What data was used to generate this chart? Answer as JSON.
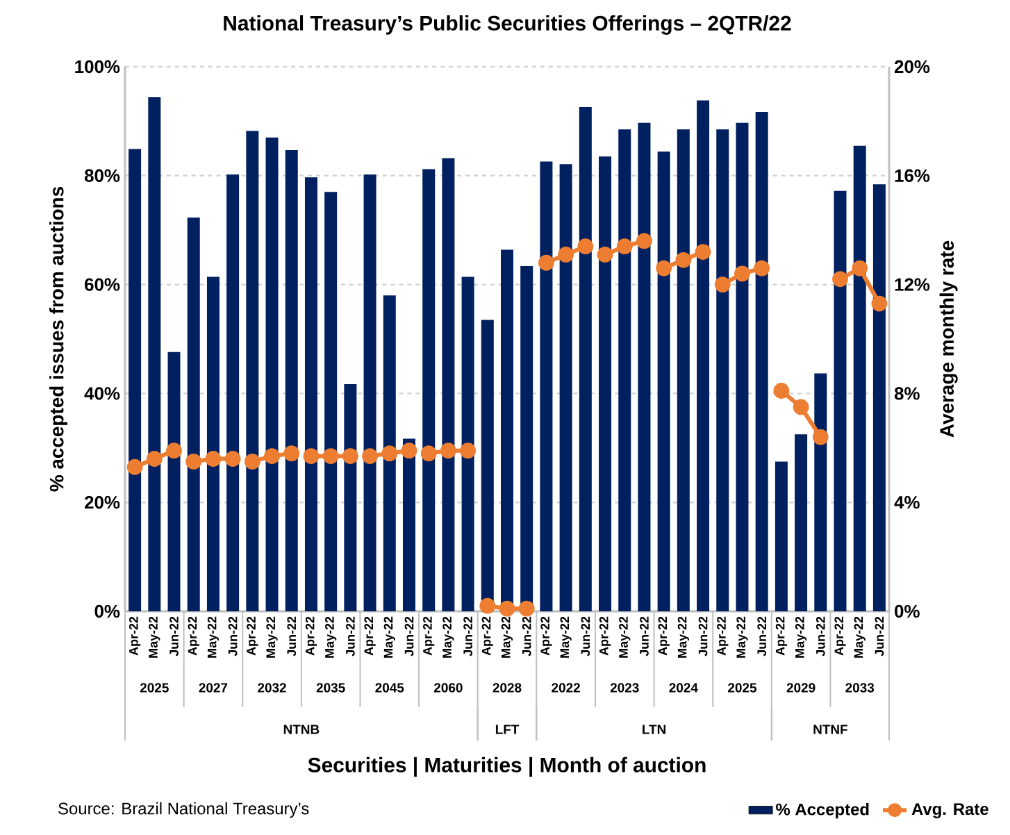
{
  "chart_data": {
    "type": "bar",
    "title": "National Treasury’s Public Securities Offerings – 2QTR/22",
    "xlabel": "Securities | Maturities | Month of auction",
    "ylabel": "% accepted issues from auctions",
    "y2label": "Average monthly rate",
    "categories": [
      "Apr-22",
      "May-22",
      "Jun-22",
      "Apr-22",
      "May-22",
      "Jun-22",
      "Apr-22",
      "May-22",
      "Jun-22",
      "Apr-22",
      "May-22",
      "Jun-22",
      "Apr-22",
      "May-22",
      "Jun-22",
      "Apr-22",
      "May-22",
      "Jun-22",
      "Apr-22",
      "May-22",
      "Jun-22",
      "Apr-22",
      "May-22",
      "Jun-22",
      "Apr-22",
      "May-22",
      "Jun-22",
      "Apr-22",
      "May-22",
      "Jun-22",
      "Apr-22",
      "May-22",
      "Jun-22",
      "Apr-22",
      "May-22",
      "Jun-22",
      "Apr-22",
      "May-22",
      "Jun-22"
    ],
    "series": [
      {
        "name": "% Accepted",
        "color": "#002060",
        "values": [
          84.9,
          94.4,
          47.6,
          72.3,
          61.4,
          80.2,
          88.2,
          87.0,
          84.7,
          79.7,
          77.0,
          41.7,
          80.2,
          58.0,
          31.7,
          81.2,
          83.2,
          61.4,
          53.5,
          66.4,
          63.4,
          82.6,
          82.1,
          92.6,
          83.5,
          88.5,
          89.7,
          84.4,
          88.5,
          93.8,
          88.5,
          89.7,
          91.7,
          27.5,
          32.5,
          43.7,
          77.2,
          85.5,
          78.4
        ]
      },
      {
        "name": "Avg. Rate",
        "type": "line",
        "axis": "y2",
        "marker": "circle",
        "color": "#ED7D31",
        "values": [
          5.3,
          5.6,
          5.9,
          5.5,
          5.6,
          5.6,
          5.5,
          5.7,
          5.8,
          5.7,
          5.7,
          5.7,
          5.7,
          5.8,
          5.9,
          5.8,
          5.9,
          5.9,
          0.2,
          0.1,
          0.1,
          12.8,
          13.1,
          13.4,
          13.1,
          13.4,
          13.6,
          12.6,
          12.9,
          13.2,
          12.0,
          12.4,
          12.6,
          8.1,
          7.5,
          6.4,
          12.2,
          12.6,
          11.3
        ]
      }
    ],
    "ylim": [
      0,
      100
    ],
    "yticks": [
      {
        "value": 0,
        "label": "0%"
      },
      {
        "value": 20,
        "label": "20%"
      },
      {
        "value": 40,
        "label": "40%"
      },
      {
        "value": 60,
        "label": "60%"
      },
      {
        "value": 80,
        "label": "80%"
      },
      {
        "value": 100,
        "label": "100%"
      }
    ],
    "y2lim": [
      0,
      20
    ],
    "y2ticks": [
      {
        "value": 0,
        "label": "0%"
      },
      {
        "value": 4,
        "label": "4%"
      },
      {
        "value": 8,
        "label": "8%"
      },
      {
        "value": 12,
        "label": "12%"
      },
      {
        "value": 16,
        "label": "16%"
      },
      {
        "value": 20,
        "label": "20%"
      }
    ],
    "grid": "y",
    "legend": "bottom",
    "annotations": [
      "2025",
      "2027",
      "2032",
      "2035",
      "2045",
      "2060",
      "2028",
      "2022",
      "2023",
      "2024",
      "2025",
      "2029",
      "2033",
      "NTNB",
      "LFT",
      "LTN",
      "NTNF",
      "Source: Brazil National Treasury’s"
    ]
  }
}
